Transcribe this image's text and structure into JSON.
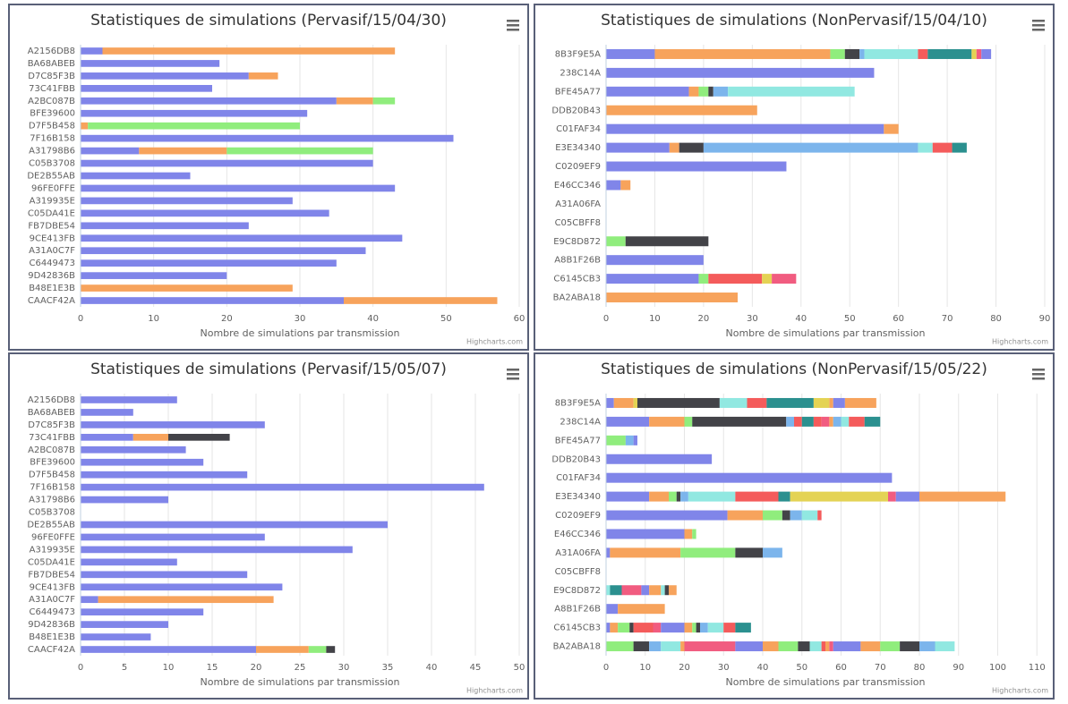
{
  "chart_data": [
    {
      "type": "bar",
      "horizontal": true,
      "stacked": true,
      "title": "Statistiques de simulations (Pervasif/15/04/30)",
      "xlabel": "Nombre de simulations par transmission",
      "credits": "Highcharts.com",
      "xlim": [
        0,
        60
      ],
      "xticks": [
        0,
        10,
        20,
        30,
        40,
        50,
        60
      ],
      "grid": true,
      "categories": [
        "A2156DB8",
        "BA68ABEB",
        "D7C85F3B",
        "73C41FBB",
        "A2BC087B",
        "BFE39600",
        "D7F5B458",
        "7F16B158",
        "A31798B6",
        "C05B3708",
        "DE2B55AB",
        "96FE0FFE",
        "A319935E",
        "C05DA41E",
        "FB7DBE54",
        "9CE413FB",
        "A31A0C7F",
        "C6449473",
        "9D42836B",
        "B48E1E3B",
        "CAACF42A"
      ],
      "values": [
        [
          3,
          40
        ],
        [
          19
        ],
        [
          23,
          4
        ],
        [
          18
        ],
        [
          35,
          5,
          3
        ],
        [
          31
        ],
        [
          1,
          29
        ],
        [
          51
        ],
        [
          8,
          12,
          20
        ],
        [
          40
        ],
        [
          15
        ],
        [
          43
        ],
        [
          29
        ],
        [
          34
        ],
        [
          23
        ],
        [
          44
        ],
        [
          39
        ],
        [
          35
        ],
        [
          20
        ],
        [
          29
        ],
        [
          36,
          21
        ]
      ],
      "colors": [
        [
          "#8085e9",
          "#f7a35c"
        ],
        [
          "#8085e9"
        ],
        [
          "#8085e9",
          "#f7a35c"
        ],
        [
          "#8085e9"
        ],
        [
          "#8085e9",
          "#f7a35c",
          "#90ed7d"
        ],
        [
          "#8085e9"
        ],
        [
          "#f7a35c",
          "#90ed7d"
        ],
        [
          "#8085e9"
        ],
        [
          "#8085e9",
          "#f7a35c",
          "#90ed7d"
        ],
        [
          "#8085e9"
        ],
        [
          "#8085e9"
        ],
        [
          "#8085e9"
        ],
        [
          "#8085e9"
        ],
        [
          "#8085e9"
        ],
        [
          "#8085e9"
        ],
        [
          "#8085e9"
        ],
        [
          "#8085e9"
        ],
        [
          "#8085e9"
        ],
        [
          "#8085e9"
        ],
        [
          "#f7a35c"
        ],
        [
          "#8085e9",
          "#f7a35c"
        ]
      ]
    },
    {
      "type": "bar",
      "horizontal": true,
      "stacked": true,
      "title": "Statistiques de simulations (NonPervasif/15/04/10)",
      "xlabel": "Nombre de simulations par transmission",
      "credits": "Highcharts.com",
      "xlim": [
        0,
        90
      ],
      "xticks": [
        0,
        10,
        20,
        30,
        40,
        50,
        60,
        70,
        80,
        90
      ],
      "grid": true,
      "categories": [
        "8B3F9E5A",
        "238C14A",
        "BFE45A77",
        "DDB20B43",
        "C01FAF34",
        "E3E34340",
        "C0209EF9",
        "E46CC346",
        "A31A06FA",
        "C05CBFF8",
        "E9C8D872",
        "A8B1F26B",
        "C6145CB3",
        "BA2ABA18"
      ],
      "values": [
        [
          10,
          36,
          3,
          3,
          1,
          11,
          2,
          9,
          1,
          1,
          2
        ],
        [
          55
        ],
        [
          17,
          2,
          2,
          1,
          3,
          26
        ],
        [
          31
        ],
        [
          57,
          3
        ],
        [
          13,
          2,
          5,
          44,
          3,
          4,
          3
        ],
        [
          37
        ],
        [
          3,
          2
        ],
        [],
        [],
        [
          4,
          17
        ],
        [
          20
        ],
        [
          19,
          2,
          11,
          2,
          5
        ],
        [
          27
        ]
      ],
      "colors": [
        [
          "#8085e9",
          "#f7a35c",
          "#90ed7d",
          "#434348",
          "#7cb5ec",
          "#91e8e1",
          "#f45b5b",
          "#2b908f",
          "#e4d354",
          "#f15c80",
          "#8085e9"
        ],
        [
          "#8085e9"
        ],
        [
          "#8085e9",
          "#f7a35c",
          "#90ed7d",
          "#434348",
          "#7cb5ec",
          "#91e8e1"
        ],
        [
          "#f7a35c"
        ],
        [
          "#8085e9",
          "#f7a35c"
        ],
        [
          "#8085e9",
          "#f7a35c",
          "#434348",
          "#7cb5ec",
          "#91e8e1",
          "#f45b5b",
          "#2b908f"
        ],
        [
          "#8085e9"
        ],
        [
          "#8085e9",
          "#f7a35c"
        ],
        [],
        [],
        [
          "#90ed7d",
          "#434348"
        ],
        [
          "#8085e9"
        ],
        [
          "#8085e9",
          "#90ed7d",
          "#f45b5b",
          "#e4d354",
          "#f15c80"
        ],
        [
          "#f7a35c"
        ]
      ]
    },
    {
      "type": "bar",
      "horizontal": true,
      "stacked": true,
      "title": "Statistiques de simulations (Pervasif/15/05/07)",
      "xlabel": "Nombre de simulations par transmission",
      "credits": "Highcharts.com",
      "xlim": [
        0,
        50
      ],
      "xticks": [
        0,
        5,
        10,
        15,
        20,
        25,
        30,
        35,
        40,
        45,
        50
      ],
      "grid": true,
      "categories": [
        "A2156DB8",
        "BA68ABEB",
        "D7C85F3B",
        "73C41FBB",
        "A2BC087B",
        "BFE39600",
        "D7F5B458",
        "7F16B158",
        "A31798B6",
        "C05B3708",
        "DE2B55AB",
        "96FE0FFE",
        "A319935E",
        "C05DA41E",
        "FB7DBE54",
        "9CE413FB",
        "A31A0C7F",
        "C6449473",
        "9D42836B",
        "B48E1E3B",
        "CAACF42A"
      ],
      "values": [
        [
          11
        ],
        [
          6
        ],
        [
          21
        ],
        [
          6,
          4,
          7
        ],
        [
          12
        ],
        [
          14
        ],
        [
          19
        ],
        [
          46
        ],
        [
          10
        ],
        [],
        [
          35
        ],
        [
          21
        ],
        [
          31
        ],
        [
          11
        ],
        [
          19
        ],
        [
          23
        ],
        [
          2,
          20
        ],
        [
          14
        ],
        [
          10
        ],
        [
          8
        ],
        [
          20,
          6,
          2,
          1
        ]
      ],
      "colors": [
        [
          "#8085e9"
        ],
        [
          "#8085e9"
        ],
        [
          "#8085e9"
        ],
        [
          "#8085e9",
          "#f7a35c",
          "#434348"
        ],
        [
          "#8085e9"
        ],
        [
          "#8085e9"
        ],
        [
          "#8085e9"
        ],
        [
          "#8085e9"
        ],
        [
          "#8085e9"
        ],
        [],
        [
          "#8085e9"
        ],
        [
          "#8085e9"
        ],
        [
          "#8085e9"
        ],
        [
          "#8085e9"
        ],
        [
          "#8085e9"
        ],
        [
          "#8085e9"
        ],
        [
          "#8085e9",
          "#f7a35c"
        ],
        [
          "#8085e9"
        ],
        [
          "#8085e9"
        ],
        [
          "#8085e9"
        ],
        [
          "#8085e9",
          "#f7a35c",
          "#90ed7d",
          "#434348"
        ]
      ]
    },
    {
      "type": "bar",
      "horizontal": true,
      "stacked": true,
      "title": "Statistiques de simulations (NonPervasif/15/05/22)",
      "xlabel": "Nombre de simulations par transmission",
      "credits": "Highcharts.com",
      "xlim": [
        0,
        112
      ],
      "xticks": [
        0,
        10,
        20,
        30,
        40,
        50,
        60,
        70,
        80,
        90,
        100,
        110
      ],
      "grid": true,
      "categories": [
        "8B3F9E5A",
        "238C14A",
        "BFE45A77",
        "DDB20B43",
        "C01FAF34",
        "E3E34340",
        "C0209EF9",
        "E46CC346",
        "A31A06FA",
        "C05CBFF8",
        "E9C8D872",
        "A8B1F26B",
        "C6145CB3",
        "BA2ABA18"
      ],
      "values": [
        [
          2,
          5,
          1,
          21,
          7,
          5,
          12,
          4,
          1,
          3,
          8
        ],
        [
          11,
          9,
          2,
          24,
          2,
          2,
          3,
          2,
          2,
          1,
          2,
          2,
          4,
          4
        ],
        [
          5,
          2,
          1
        ],
        [
          27
        ],
        [
          73
        ],
        [
          11,
          5,
          2,
          1,
          2,
          12,
          11,
          3,
          25,
          2,
          6,
          22
        ],
        [
          31,
          9,
          5,
          2,
          3,
          4,
          1
        ],
        [
          20,
          2,
          1
        ],
        [
          1,
          18,
          14,
          7,
          5
        ],
        [],
        [
          1,
          3,
          5,
          2,
          3,
          1,
          1,
          2
        ],
        [
          3,
          12
        ],
        [
          1,
          2,
          3,
          1,
          5,
          2,
          6,
          2,
          1,
          1,
          2,
          4,
          3,
          4
        ],
        [
          7,
          4,
          3,
          5,
          1,
          13,
          7,
          4,
          5,
          3,
          3,
          1,
          1,
          1,
          7,
          5,
          5,
          5,
          4,
          5
        ]
      ],
      "colors": [
        [
          "#8085e9",
          "#f7a35c",
          "#e4d354",
          "#434348",
          "#91e8e1",
          "#f45b5b",
          "#2b908f",
          "#e4d354",
          "#f7a35c",
          "#8085e9",
          "#f7a35c"
        ],
        [
          "#8085e9",
          "#f7a35c",
          "#90ed7d",
          "#434348",
          "#7cb5ec",
          "#f45b5b",
          "#2b908f",
          "#f45b5b",
          "#f15c80",
          "#f7a35c",
          "#7cb5ec",
          "#91e8e1",
          "#f45b5b",
          "#2b908f"
        ],
        [
          "#90ed7d",
          "#7cb5ec",
          "#8085e9"
        ],
        [
          "#8085e9"
        ],
        [
          "#8085e9"
        ],
        [
          "#8085e9",
          "#f7a35c",
          "#90ed7d",
          "#434348",
          "#7cb5ec",
          "#91e8e1",
          "#f45b5b",
          "#2b908f",
          "#e4d354",
          "#f15c80",
          "#8085e9",
          "#f7a35c"
        ],
        [
          "#8085e9",
          "#f7a35c",
          "#90ed7d",
          "#434348",
          "#7cb5ec",
          "#91e8e1",
          "#f45b5b"
        ],
        [
          "#8085e9",
          "#f7a35c",
          "#90ed7d"
        ],
        [
          "#8085e9",
          "#f7a35c",
          "#90ed7d",
          "#434348",
          "#7cb5ec"
        ],
        [],
        [
          "#91e8e1",
          "#2b908f",
          "#f15c80",
          "#8085e9",
          "#f7a35c",
          "#91e8e1",
          "#434348",
          "#f7a35c"
        ],
        [
          "#8085e9",
          "#f7a35c"
        ],
        [
          "#8085e9",
          "#f7a35c",
          "#90ed7d",
          "#434348",
          "#f45b5b",
          "#f15c80",
          "#8085e9",
          "#f7a35c",
          "#90ed7d",
          "#434348",
          "#7cb5ec",
          "#91e8e1",
          "#f45b5b",
          "#2b908f"
        ],
        [
          "#90ed7d",
          "#434348",
          "#7cb5ec",
          "#91e8e1",
          "#f7a35c",
          "#f15c80",
          "#8085e9",
          "#f7a35c",
          "#90ed7d",
          "#434348",
          "#91e8e1",
          "#f45b5b",
          "#f7a35c",
          "#f15c80",
          "#8085e9",
          "#f7a35c",
          "#90ed7d",
          "#434348",
          "#7cb5ec",
          "#91e8e1"
        ]
      ]
    }
  ]
}
